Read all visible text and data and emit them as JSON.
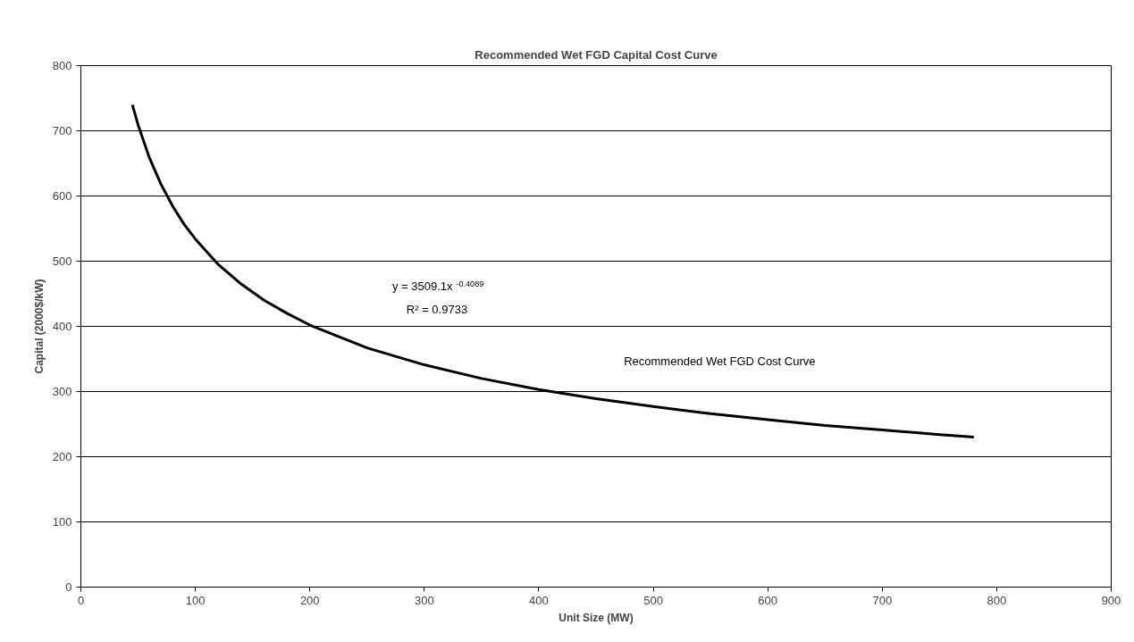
{
  "chart_data": {
    "type": "line",
    "title": "Recommended Wet FGD Capital Cost Curve",
    "xlabel": "Unit Size (MW)",
    "ylabel": "Capital (2000$/kW)",
    "x": [
      45,
      50,
      60,
      70,
      80,
      90,
      100,
      120,
      140,
      160,
      180,
      200,
      250,
      300,
      350,
      400,
      450,
      500,
      550,
      600,
      650,
      700,
      750,
      780
    ],
    "series": [
      {
        "name": "Recommended Wet FGD Cost Curve",
        "color": "#000000",
        "values": [
          740,
          709,
          658,
          618,
          585,
          557,
          534,
          495,
          465,
          440,
          420,
          402,
          367,
          341,
          320,
          303,
          289,
          277,
          266,
          257,
          248,
          241,
          234,
          230
        ]
      }
    ],
    "annotations": [
      "y = 3509.1x$^{-0.4089}$",
      "R² = 0.9733"
    ],
    "xlim": [
      0,
      900
    ],
    "xticks": [
      0,
      100,
      200,
      300,
      400,
      500,
      600,
      700,
      800,
      900
    ],
    "ylim": [
      0,
      800
    ],
    "yticks": [
      0,
      100,
      200,
      300,
      400,
      500,
      600,
      700,
      800
    ],
    "grid": "y",
    "marker": "none",
    "line_style": "solid"
  }
}
